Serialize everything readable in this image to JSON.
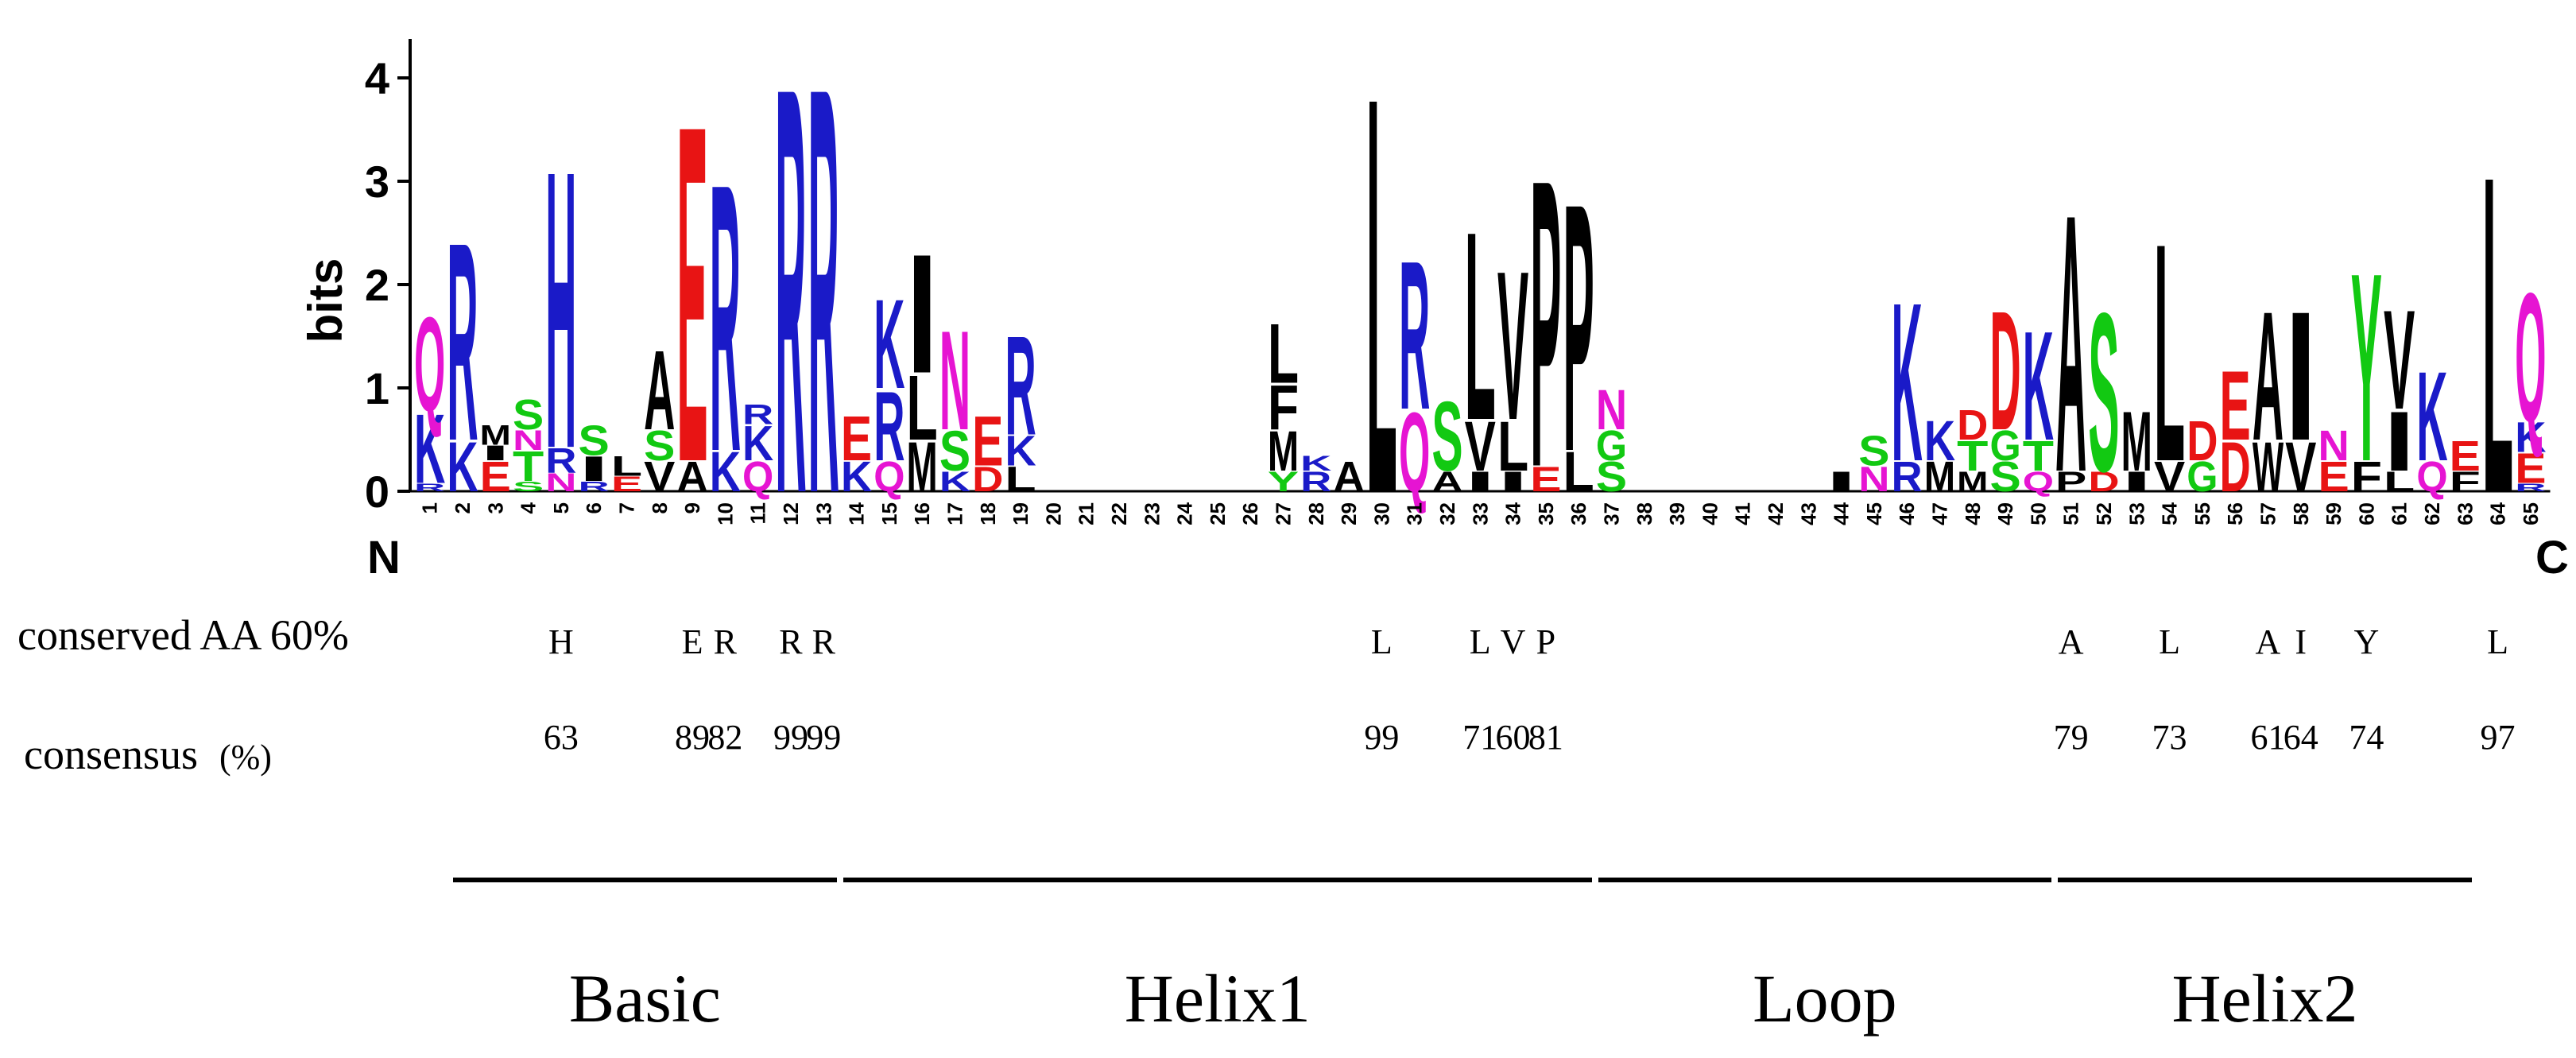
{
  "chart_data": {
    "type": "sequence-logo",
    "ylabel": "bits",
    "ylim": [
      0,
      4.3
    ],
    "yticks": [
      0,
      1,
      2,
      3,
      4
    ],
    "positions": [
      {
        "pos": 1,
        "letters": [
          [
            "R",
            0.08
          ],
          [
            "K",
            0.7
          ],
          [
            "Q",
            0.95
          ]
        ]
      },
      {
        "pos": 2,
        "letters": [
          [
            "K",
            0.5
          ],
          [
            "R",
            2.0
          ]
        ]
      },
      {
        "pos": 3,
        "letters": [
          [
            "E",
            0.3
          ],
          [
            "I",
            0.15
          ],
          [
            "M",
            0.2
          ]
        ]
      },
      {
        "pos": 4,
        "letters": [
          [
            "S",
            0.1
          ],
          [
            "T",
            0.3
          ],
          [
            "N",
            0.2
          ],
          [
            "S",
            0.3
          ]
        ]
      },
      {
        "pos": 5,
        "letters": [
          [
            "N",
            0.18
          ],
          [
            "R",
            0.25
          ],
          [
            "H",
            2.8
          ]
        ]
      },
      {
        "pos": 6,
        "letters": [
          [
            "R",
            0.1
          ],
          [
            "I",
            0.25
          ],
          [
            "S",
            0.3
          ]
        ]
      },
      {
        "pos": 7,
        "letters": [
          [
            "E",
            0.15
          ],
          [
            "L",
            0.2
          ]
        ]
      },
      {
        "pos": 8,
        "letters": [
          [
            "V",
            0.3
          ],
          [
            "S",
            0.3
          ],
          [
            "A",
            0.8
          ]
        ]
      },
      {
        "pos": 9,
        "letters": [
          [
            "A",
            0.3
          ],
          [
            "E",
            3.4
          ]
        ]
      },
      {
        "pos": 10,
        "letters": [
          [
            "K",
            0.4
          ],
          [
            "R",
            2.7
          ]
        ]
      },
      {
        "pos": 11,
        "letters": [
          [
            "Q",
            0.3
          ],
          [
            "K",
            0.35
          ],
          [
            "R",
            0.2
          ]
        ]
      },
      {
        "pos": 12,
        "letters": [
          [
            "R",
            4.1
          ]
        ]
      },
      {
        "pos": 13,
        "letters": [
          [
            "R",
            4.1
          ]
        ]
      },
      {
        "pos": 14,
        "letters": [
          [
            "K",
            0.3
          ],
          [
            "E",
            0.45
          ]
        ]
      },
      {
        "pos": 15,
        "letters": [
          [
            "Q",
            0.3
          ],
          [
            "R",
            0.7
          ],
          [
            "K",
            0.9
          ]
        ]
      },
      {
        "pos": 16,
        "letters": [
          [
            "M",
            0.5
          ],
          [
            "L",
            0.65
          ],
          [
            "I",
            1.2
          ]
        ]
      },
      {
        "pos": 17,
        "letters": [
          [
            "K",
            0.2
          ],
          [
            "S",
            0.4
          ],
          [
            "N",
            1.0
          ]
        ]
      },
      {
        "pos": 18,
        "letters": [
          [
            "D",
            0.25
          ],
          [
            "E",
            0.5
          ]
        ]
      },
      {
        "pos": 19,
        "letters": [
          [
            "L",
            0.25
          ],
          [
            "K",
            0.3
          ],
          [
            "R",
            1.0
          ]
        ]
      },
      {
        "pos": 20,
        "letters": []
      },
      {
        "pos": 21,
        "letters": []
      },
      {
        "pos": 22,
        "letters": []
      },
      {
        "pos": 23,
        "letters": []
      },
      {
        "pos": 24,
        "letters": []
      },
      {
        "pos": 25,
        "letters": []
      },
      {
        "pos": 26,
        "letters": []
      },
      {
        "pos": 27,
        "letters": [
          [
            "Y",
            0.2
          ],
          [
            "M",
            0.4
          ],
          [
            "F",
            0.45
          ],
          [
            "L",
            0.6
          ]
        ]
      },
      {
        "pos": 28,
        "letters": [
          [
            "R",
            0.2
          ],
          [
            "K",
            0.15
          ]
        ]
      },
      {
        "pos": 29,
        "letters": [
          [
            "A",
            0.3
          ]
        ]
      },
      {
        "pos": 30,
        "letters": [
          [
            "L",
            4.0
          ]
        ]
      },
      {
        "pos": 31,
        "letters": [
          [
            "Q",
            0.8
          ],
          [
            "R",
            1.5
          ]
        ]
      },
      {
        "pos": 32,
        "letters": [
          [
            "A",
            0.2
          ],
          [
            "S",
            0.7
          ]
        ]
      },
      {
        "pos": 33,
        "letters": [
          [
            "I",
            0.2
          ],
          [
            "V",
            0.5
          ],
          [
            "L",
            1.9
          ]
        ]
      },
      {
        "pos": 34,
        "letters": [
          [
            "I",
            0.2
          ],
          [
            "L",
            0.5
          ],
          [
            "V",
            1.5
          ]
        ]
      },
      {
        "pos": 35,
        "letters": [
          [
            "E",
            0.25
          ],
          [
            "P",
            2.9
          ]
        ]
      },
      {
        "pos": 36,
        "letters": [
          [
            "L",
            0.4
          ],
          [
            "P",
            2.5
          ]
        ]
      },
      {
        "pos": 37,
        "letters": [
          [
            "S",
            0.3
          ],
          [
            "G",
            0.3
          ],
          [
            "N",
            0.4
          ]
        ]
      },
      {
        "pos": 38,
        "letters": []
      },
      {
        "pos": 39,
        "letters": []
      },
      {
        "pos": 40,
        "letters": []
      },
      {
        "pos": 41,
        "letters": []
      },
      {
        "pos": 42,
        "letters": []
      },
      {
        "pos": 43,
        "letters": []
      },
      {
        "pos": 44,
        "letters": [
          [
            "I",
            0.2
          ]
        ]
      },
      {
        "pos": 45,
        "letters": [
          [
            "N",
            0.25
          ],
          [
            "S",
            0.3
          ]
        ]
      },
      {
        "pos": 46,
        "letters": [
          [
            "R",
            0.3
          ],
          [
            "K",
            1.6
          ]
        ]
      },
      {
        "pos": 47,
        "letters": [
          [
            "M",
            0.3
          ],
          [
            "K",
            0.4
          ]
        ]
      },
      {
        "pos": 48,
        "letters": [
          [
            "M",
            0.2
          ],
          [
            "T",
            0.3
          ],
          [
            "D",
            0.3
          ]
        ]
      },
      {
        "pos": 49,
        "letters": [
          [
            "S",
            0.3
          ],
          [
            "G",
            0.3
          ],
          [
            "D",
            1.2
          ]
        ]
      },
      {
        "pos": 50,
        "letters": [
          [
            "Q",
            0.2
          ],
          [
            "T",
            0.3
          ],
          [
            "K",
            1.1
          ]
        ]
      },
      {
        "pos": 51,
        "letters": [
          [
            "P",
            0.2
          ],
          [
            "A",
            2.6
          ]
        ]
      },
      {
        "pos": 52,
        "letters": [
          [
            "D",
            0.2
          ],
          [
            "S",
            1.6
          ]
        ]
      },
      {
        "pos": 53,
        "letters": [
          [
            "I",
            0.2
          ],
          [
            "M",
            0.6
          ]
        ]
      },
      {
        "pos": 54,
        "letters": [
          [
            "V",
            0.3
          ],
          [
            "L",
            2.2
          ]
        ]
      },
      {
        "pos": 55,
        "letters": [
          [
            "G",
            0.3
          ],
          [
            "D",
            0.4
          ]
        ]
      },
      {
        "pos": 56,
        "letters": [
          [
            "D",
            0.5
          ],
          [
            "E",
            0.7
          ]
        ]
      },
      {
        "pos": 57,
        "letters": [
          [
            "W",
            0.5
          ],
          [
            "A",
            1.3
          ]
        ]
      },
      {
        "pos": 58,
        "letters": [
          [
            "V",
            0.5
          ],
          [
            "I",
            1.3
          ]
        ]
      },
      {
        "pos": 59,
        "letters": [
          [
            "E",
            0.3
          ],
          [
            "N",
            0.3
          ]
        ]
      },
      {
        "pos": 60,
        "letters": [
          [
            "F",
            0.3
          ],
          [
            "Y",
            1.9
          ]
        ]
      },
      {
        "pos": 61,
        "letters": [
          [
            "L",
            0.2
          ],
          [
            "I",
            0.6
          ],
          [
            "V",
            1.0
          ]
        ]
      },
      {
        "pos": 62,
        "letters": [
          [
            "Q",
            0.3
          ],
          [
            "K",
            0.9
          ]
        ]
      },
      {
        "pos": 63,
        "letters": [
          [
            "F",
            0.2
          ],
          [
            "E",
            0.3
          ]
        ]
      },
      {
        "pos": 64,
        "letters": [
          [
            "L",
            3.2
          ]
        ]
      },
      {
        "pos": 65,
        "letters": [
          [
            "R",
            0.08
          ],
          [
            "E",
            0.3
          ],
          [
            "K",
            0.3
          ],
          [
            "Q",
            1.3
          ]
        ]
      }
    ],
    "n_terminus_label": "N",
    "c_terminus_label": "C",
    "colors": {
      "basic": "#1a1ac8",
      "acidic": "#e81414",
      "polar": "#e614d2",
      "neutral": "#12c912",
      "hydrophobic": "#000000"
    }
  },
  "conserved_row": {
    "label": "conserved AA 60%",
    "entries": [
      {
        "pos": 5,
        "aa": "H"
      },
      {
        "pos": 9,
        "aa": "E"
      },
      {
        "pos": 10,
        "aa": "R"
      },
      {
        "pos": 12,
        "aa": "R"
      },
      {
        "pos": 13,
        "aa": "R"
      },
      {
        "pos": 30,
        "aa": "L"
      },
      {
        "pos": 33,
        "aa": "L"
      },
      {
        "pos": 34,
        "aa": "V"
      },
      {
        "pos": 35,
        "aa": "P"
      },
      {
        "pos": 51,
        "aa": "A"
      },
      {
        "pos": 54,
        "aa": "L"
      },
      {
        "pos": 57,
        "aa": "A"
      },
      {
        "pos": 58,
        "aa": "I"
      },
      {
        "pos": 60,
        "aa": "Y"
      },
      {
        "pos": 64,
        "aa": "L"
      }
    ]
  },
  "consensus_row": {
    "label": "consensus",
    "unit": "(%)",
    "entries": [
      {
        "pos": 5,
        "value": "63"
      },
      {
        "pos": 9,
        "value": "89"
      },
      {
        "pos": 10,
        "value": "82"
      },
      {
        "pos": 12,
        "value": "99"
      },
      {
        "pos": 13,
        "value": "99"
      },
      {
        "pos": 30,
        "value": "99"
      },
      {
        "pos": 33,
        "value": "71"
      },
      {
        "pos": 34,
        "value": "60"
      },
      {
        "pos": 35,
        "value": "81"
      },
      {
        "pos": 51,
        "value": "79"
      },
      {
        "pos": 54,
        "value": "73"
      },
      {
        "pos": 57,
        "value": "61"
      },
      {
        "pos": 58,
        "value": "64"
      },
      {
        "pos": 60,
        "value": "74"
      },
      {
        "pos": 64,
        "value": "97"
      }
    ]
  },
  "regions": [
    {
      "name": "Basic",
      "start": 1,
      "end": 13
    },
    {
      "name": "Helix1",
      "start": 14,
      "end": 36
    },
    {
      "name": "Loop",
      "start": 37,
      "end": 50
    },
    {
      "name": "Helix2",
      "start": 51,
      "end": 65
    }
  ]
}
